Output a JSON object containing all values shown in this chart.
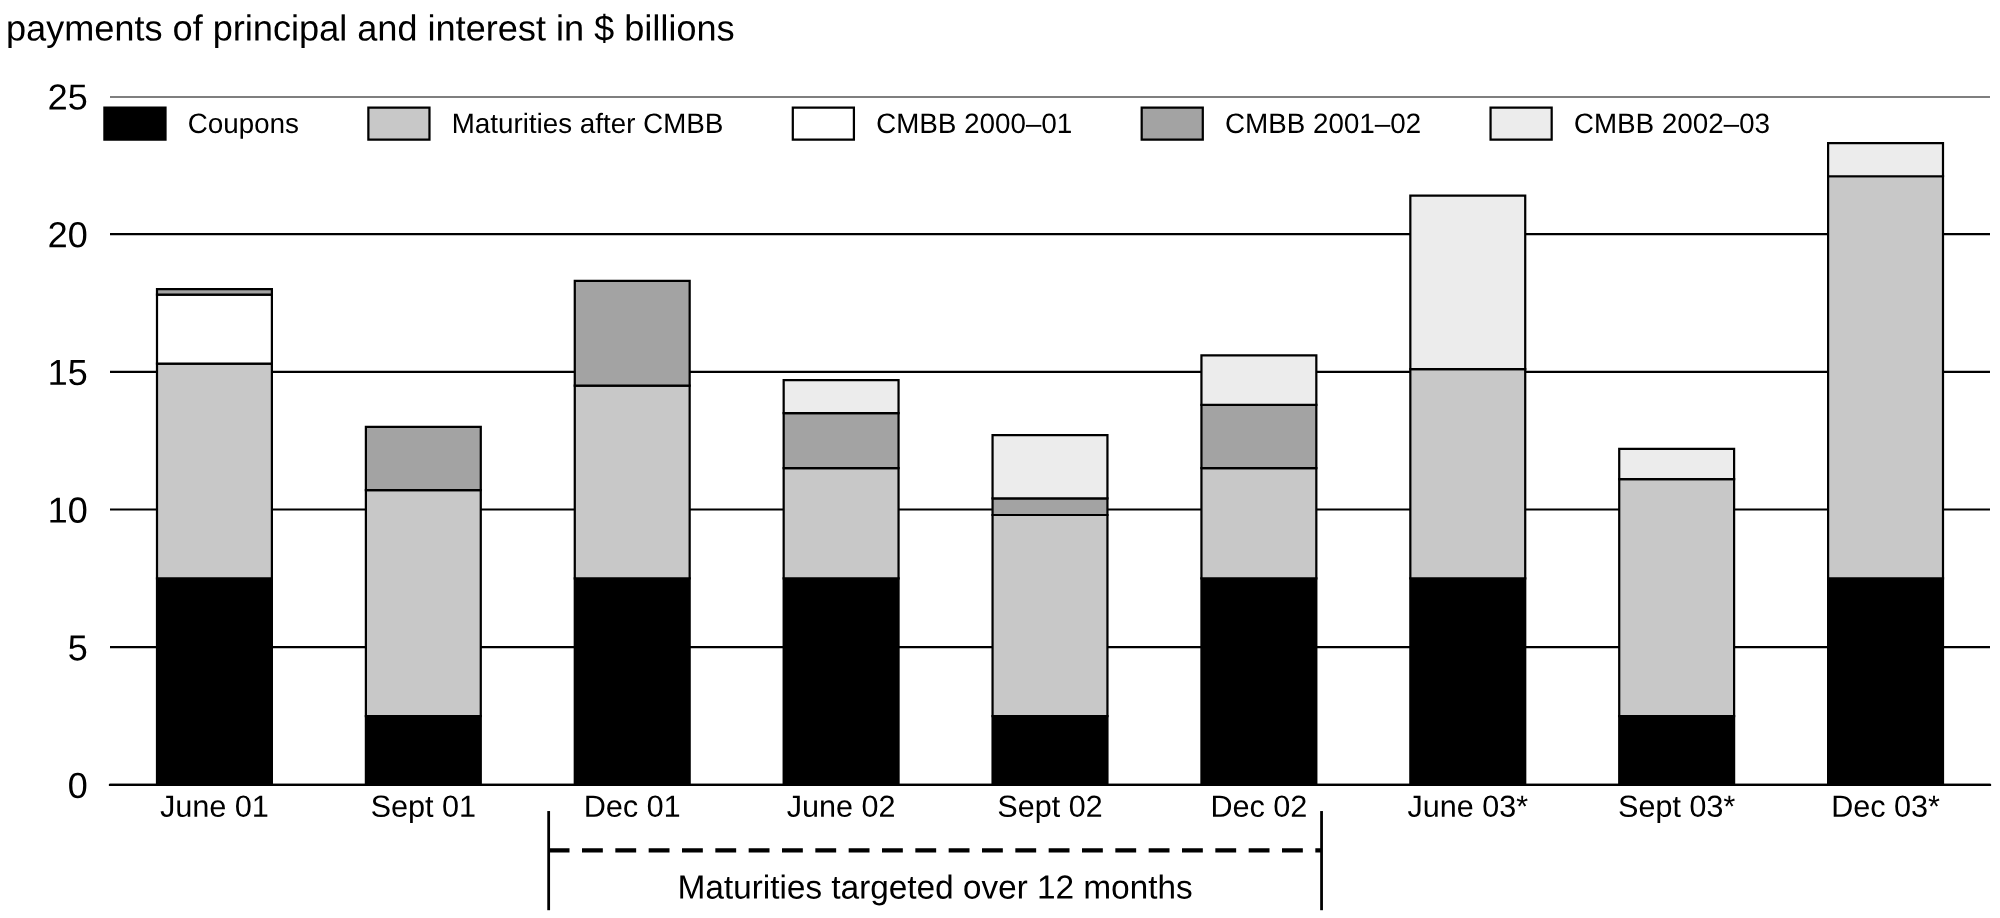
{
  "chart_data": {
    "type": "bar",
    "stacked": true,
    "title": "payments of principal and interest in $ billions",
    "categories": [
      "June 01",
      "Sept 01",
      "Dec 01",
      "June 02",
      "Sept 02",
      "Dec 02",
      "June 03*",
      "Sept 03*",
      "Dec 03*"
    ],
    "series": [
      {
        "name": "Coupons",
        "color": "#000000",
        "values": [
          7.5,
          2.5,
          7.5,
          7.5,
          2.5,
          7.5,
          7.5,
          2.5,
          7.5
        ]
      },
      {
        "name": "Maturities after CMBB",
        "color": "#c8c8c8",
        "values": [
          7.8,
          8.2,
          7.0,
          4.0,
          7.3,
          4.0,
          7.6,
          8.6,
          14.6
        ]
      },
      {
        "name": "CMBB 2000–01",
        "color": "#ffffff",
        "values": [
          2.5,
          null,
          null,
          null,
          null,
          null,
          null,
          null,
          null
        ]
      },
      {
        "name": "CMBB 2001–02",
        "color": "#a3a3a3",
        "values": [
          0.2,
          2.3,
          3.8,
          2.0,
          0.6,
          2.3,
          null,
          null,
          null
        ]
      },
      {
        "name": "CMBB 2002–03",
        "color": "#ececec",
        "values": [
          null,
          null,
          null,
          1.2,
          2.3,
          1.8,
          6.3,
          1.1,
          1.2
        ]
      }
    ],
    "ylim": [
      0,
      25
    ],
    "yticks": [
      0,
      5,
      10,
      15,
      20,
      25
    ],
    "grid": "y",
    "legend": "top",
    "annotations": [
      "Maturities targeted over 12 months"
    ]
  }
}
